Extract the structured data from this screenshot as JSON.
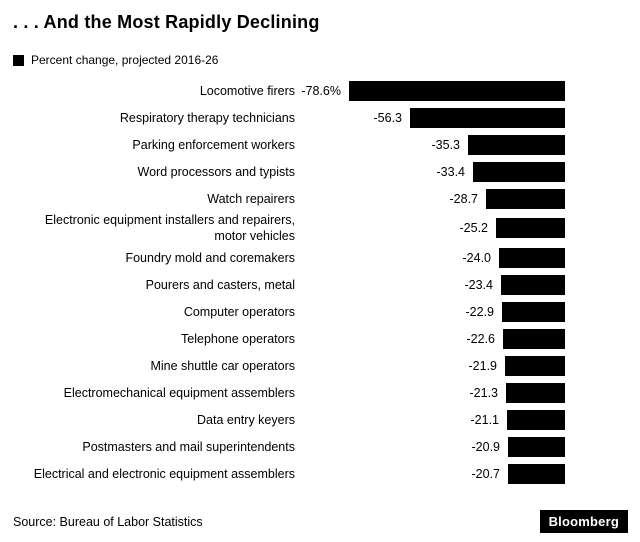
{
  "header": {
    "title": ". . . And the Most Rapidly Declining",
    "legend_label": "Percent change, projected 2016-26"
  },
  "footer": {
    "source": "Source: Bureau of Labor Statistics",
    "brand": "Bloomberg"
  },
  "chart_data": {
    "type": "bar",
    "orientation": "horizontal",
    "title": ". . . And the Most Rapidly Declining",
    "legend": [
      "Percent change, projected 2016-26"
    ],
    "legend_position": "top-left",
    "grid": false,
    "xlim": [
      -80,
      0
    ],
    "bar_color": "#000000",
    "categories": [
      "Locomotive firers",
      "Respiratory therapy technicians",
      "Parking enforcement workers",
      "Word processors and typists",
      "Watch repairers",
      "Electronic equipment installers and repairers, motor vehicles",
      "Foundry mold and coremakers",
      "Pourers and casters, metal",
      "Computer operators",
      "Telephone operators",
      "Mine shuttle car operators",
      "Electromechanical equipment assemblers",
      "Data entry keyers",
      "Postmasters and mail superintendents",
      "Electrical and electronic equipment assemblers"
    ],
    "values": [
      -78.6,
      -56.3,
      -35.3,
      -33.4,
      -28.7,
      -25.2,
      -24.0,
      -23.4,
      -22.9,
      -22.6,
      -21.9,
      -21.3,
      -21.1,
      -20.9,
      -20.7
    ],
    "value_labels": [
      "-78.6%",
      "-56.3",
      "-35.3",
      "-33.4",
      "-28.7",
      "-25.2",
      "-24.0",
      "-23.4",
      "-22.9",
      "-22.6",
      "-21.9",
      "-21.3",
      "-21.1",
      "-20.9",
      "-20.7"
    ]
  }
}
